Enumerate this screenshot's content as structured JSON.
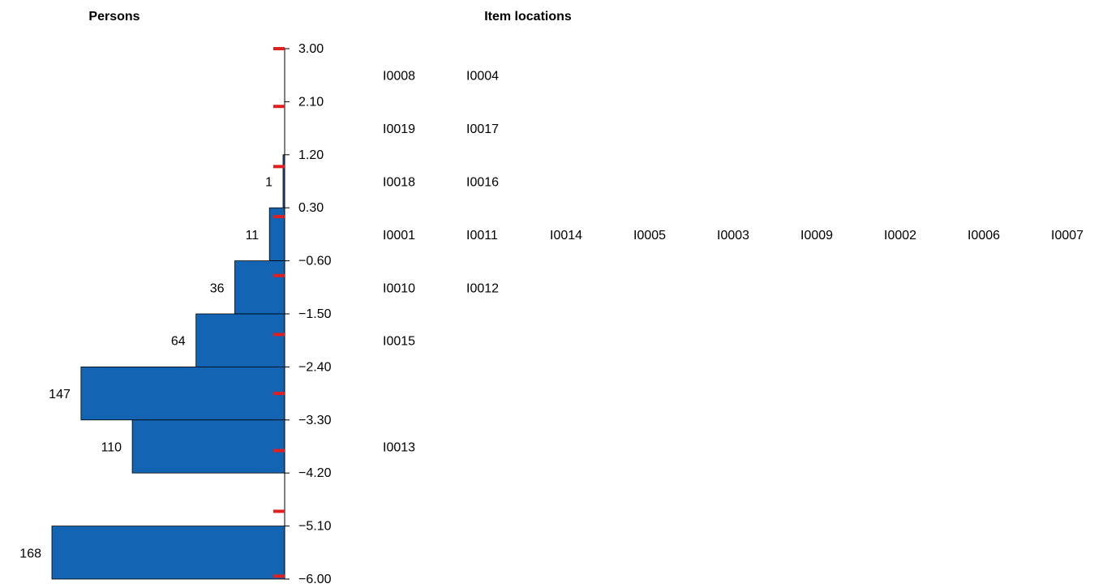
{
  "chart_data": {
    "type": "wright-map",
    "persons_title": "Persons",
    "items_title": "Item locations",
    "y_range": [
      -6.0,
      3.0
    ],
    "y_ticks": [
      "3.00",
      "2.10",
      "1.20",
      "0.30",
      "−0.60",
      "−1.50",
      "−2.40",
      "−3.30",
      "−4.20",
      "−5.10",
      "−6.00"
    ],
    "y_tick_values": [
      3.0,
      2.1,
      1.2,
      0.3,
      -0.6,
      -1.5,
      -2.4,
      -3.3,
      -4.2,
      -5.1,
      -6.0
    ],
    "bar_color": "#1464b4",
    "marker_color": "#e02020",
    "person_bins": [
      {
        "from": 0.3,
        "to": 1.2,
        "count": 1,
        "label": "1"
      },
      {
        "from": -0.6,
        "to": 0.3,
        "count": 11,
        "label": "11"
      },
      {
        "from": -1.5,
        "to": -0.6,
        "count": 36,
        "label": "36"
      },
      {
        "from": -2.4,
        "to": -1.5,
        "count": 64,
        "label": "64"
      },
      {
        "from": -3.3,
        "to": -2.4,
        "count": 147,
        "label": "147"
      },
      {
        "from": -4.2,
        "to": -3.3,
        "count": 110,
        "label": "110"
      },
      {
        "from": -6.0,
        "to": -5.1,
        "count": 168,
        "label": "168"
      }
    ],
    "red_markers": [
      3.0,
      2.02,
      1.0,
      0.15,
      -0.85,
      -1.85,
      -2.85,
      -3.82,
      -4.85,
      -5.95
    ],
    "item_rows": [
      {
        "y": 2.55,
        "items": [
          "I0008",
          "I0004"
        ]
      },
      {
        "y": 1.65,
        "items": [
          "I0019",
          "I0017"
        ]
      },
      {
        "y": 0.75,
        "items": [
          "I0018",
          "I0016"
        ]
      },
      {
        "y": -0.15,
        "items": [
          "I0001",
          "I0011",
          "I0014",
          "I0005",
          "I0003",
          "I0009",
          "I0002",
          "I0006",
          "I0007"
        ]
      },
      {
        "y": -1.05,
        "items": [
          "I0010",
          "I0012"
        ]
      },
      {
        "y": -1.95,
        "items": [
          "I0015"
        ]
      },
      {
        "y": -3.75,
        "items": [
          "I0013"
        ]
      }
    ]
  }
}
